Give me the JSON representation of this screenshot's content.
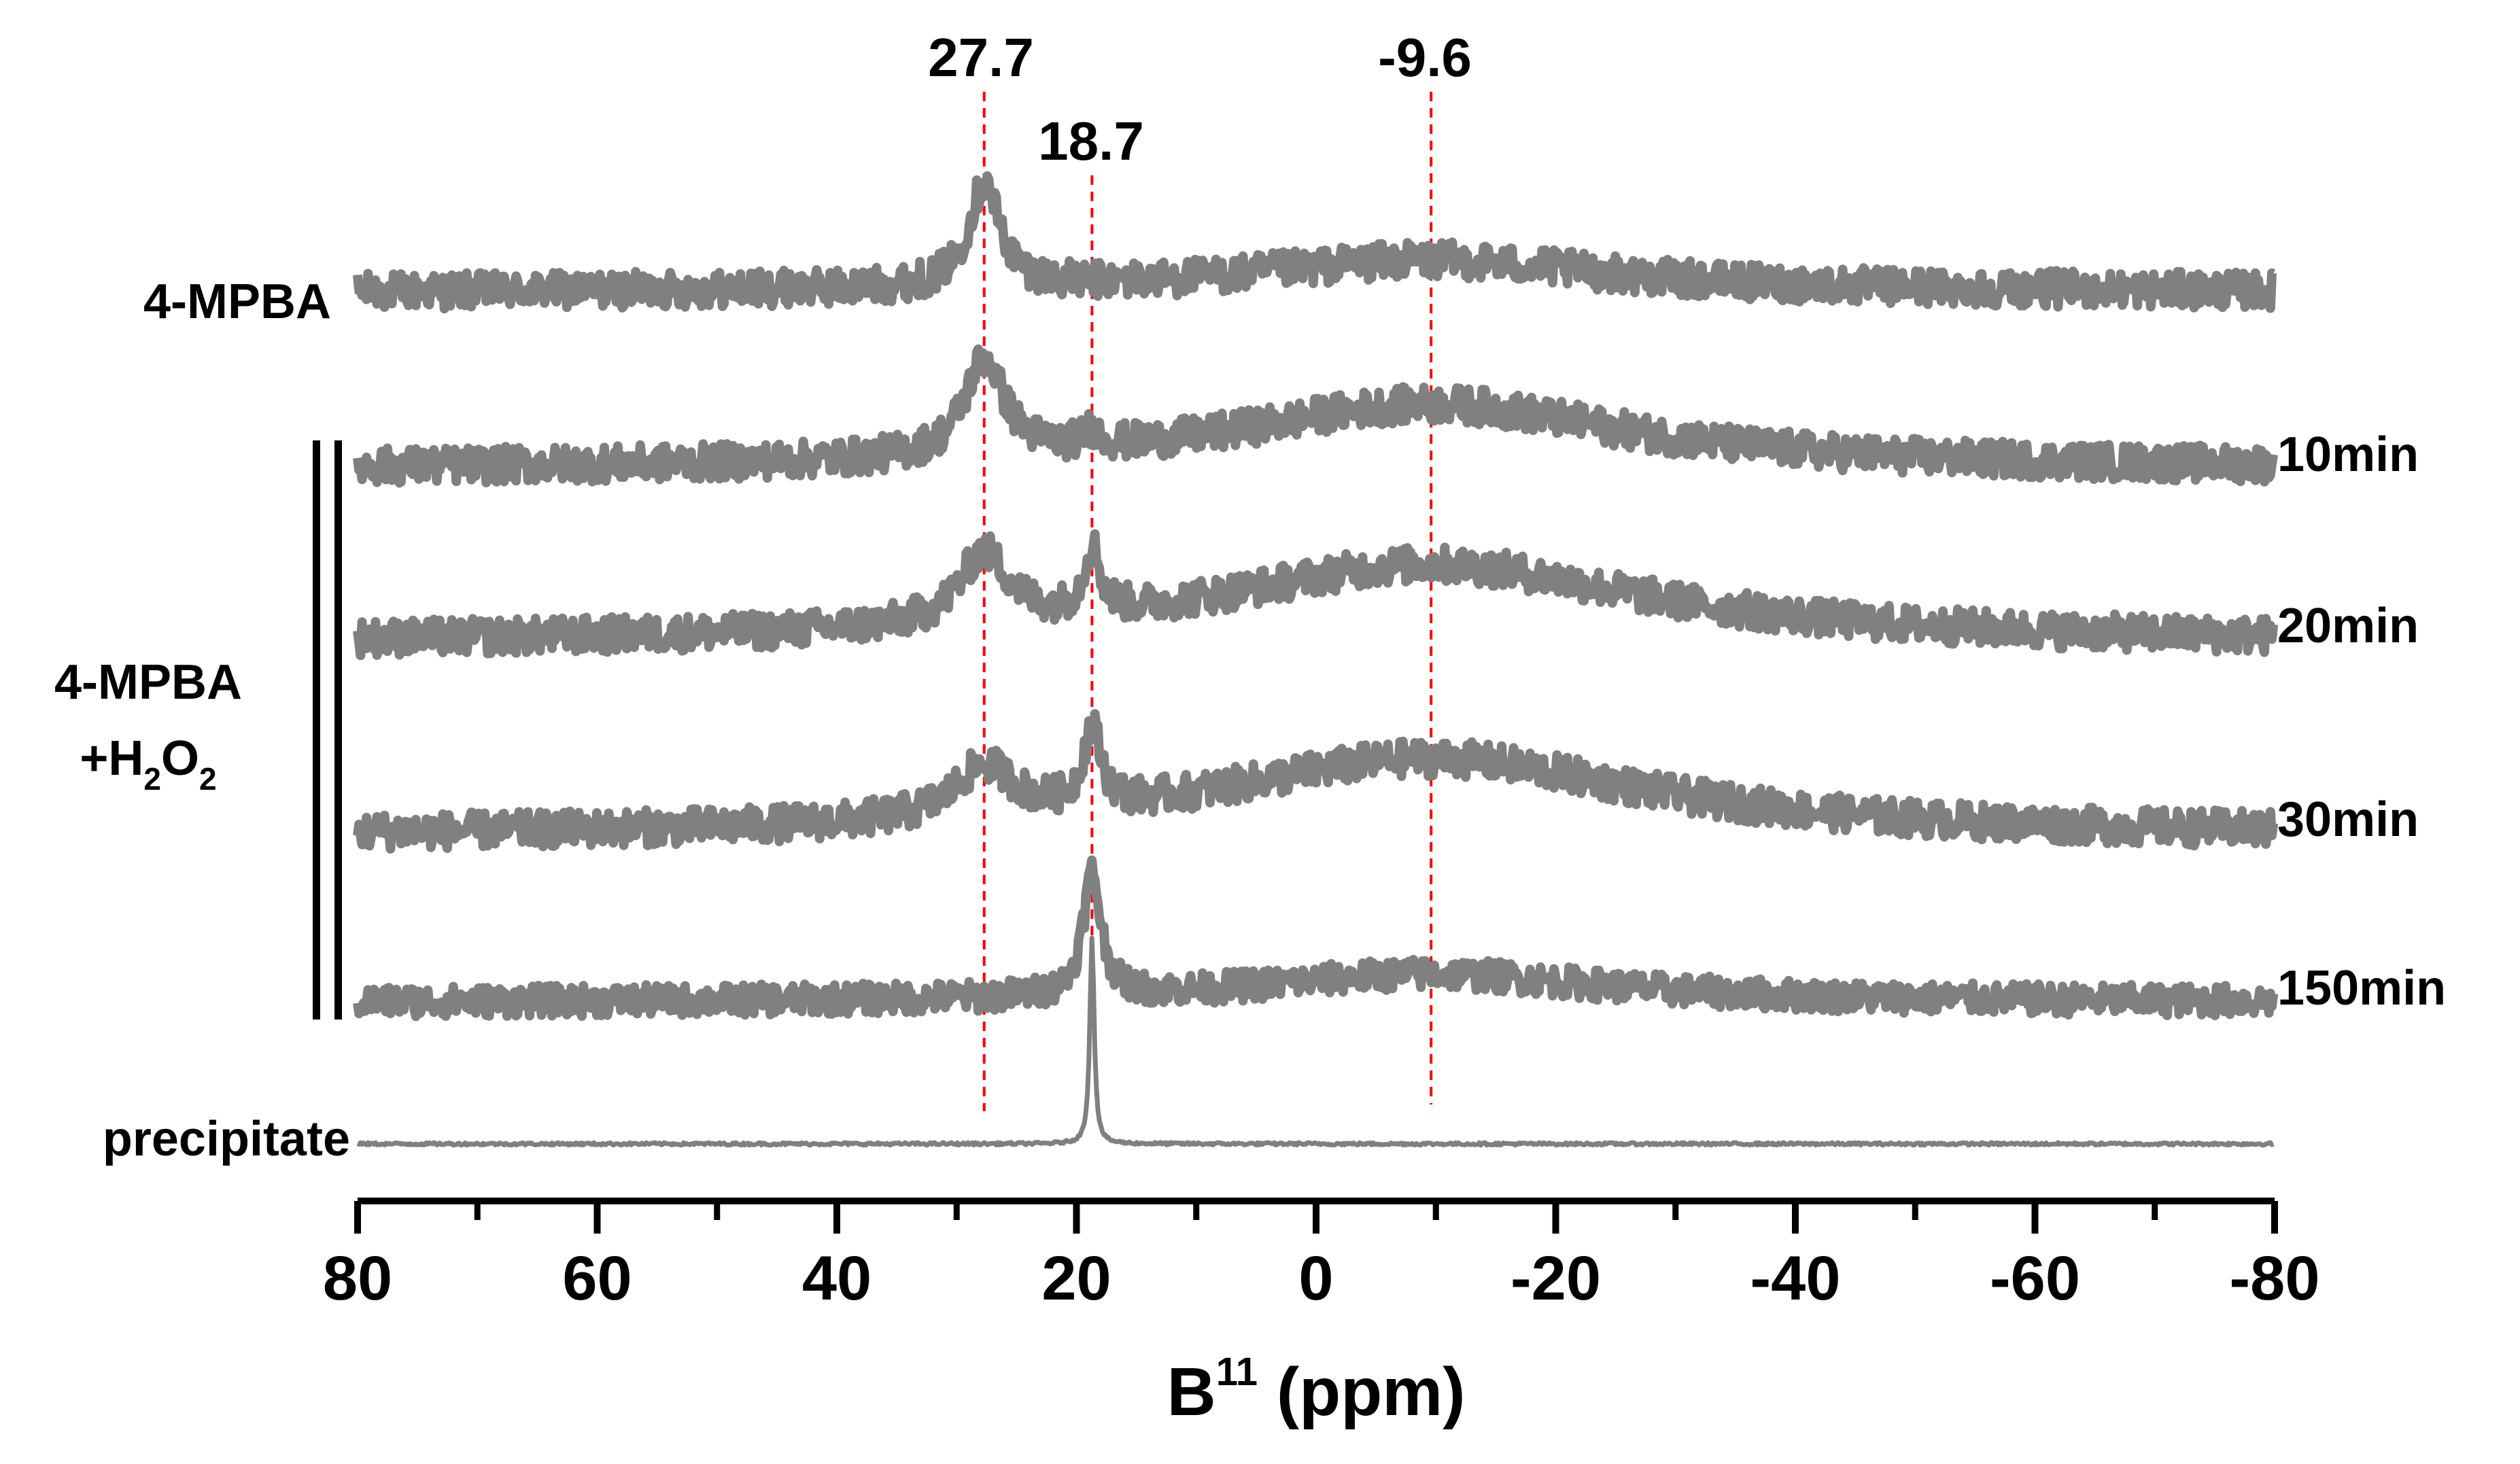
{
  "chart_data": {
    "type": "line",
    "xlabel": {
      "main": "B",
      "sup": "11",
      "unit": " (ppm)"
    },
    "xlim": [
      80,
      -80
    ],
    "x_reversed": true,
    "xticks_major": [
      80,
      60,
      40,
      20,
      0,
      -20,
      -40,
      -60,
      -80
    ],
    "xticks_major_labels": [
      "80",
      "60",
      "40",
      "20",
      "0",
      "-20",
      "-40",
      "-60",
      "-80"
    ],
    "xticks_minor": [
      70,
      50,
      30,
      10,
      -10,
      -30,
      -50,
      -70
    ],
    "grid": false,
    "line_color": "#808080",
    "marker_color": "#ff0000",
    "peak_markers": [
      {
        "ppm": 27.7,
        "label": "27.7"
      },
      {
        "ppm": 18.7,
        "label": "18.7"
      },
      {
        "ppm": -9.6,
        "label": "-9.6"
      }
    ],
    "group_label": {
      "line1": "4-MPBA",
      "line2_prefix": "+H",
      "sub1": "2",
      "mid": "O",
      "sub2": "2"
    },
    "series": [
      {
        "name": "4-MPBA",
        "side": "left",
        "peaks": [
          {
            "ppm": 27.7,
            "height": 0.8,
            "width": 1.6
          },
          {
            "ppm": -9.6,
            "height": 0.25,
            "width": 18
          }
        ],
        "noise": 0.14
      },
      {
        "name": "10min",
        "side": "right",
        "peaks": [
          {
            "ppm": 27.7,
            "height": 0.75,
            "width": 2
          },
          {
            "ppm": 18.7,
            "height": 0.12,
            "width": 0.8
          },
          {
            "ppm": -9.6,
            "height": 0.5,
            "width": 20
          }
        ],
        "noise": 0.14
      },
      {
        "name": "20min",
        "side": "right",
        "peaks": [
          {
            "ppm": 27.7,
            "height": 0.55,
            "width": 2.5
          },
          {
            "ppm": 18.7,
            "height": 0.5,
            "width": 0.8
          },
          {
            "ppm": -9.6,
            "height": 0.6,
            "width": 22
          }
        ],
        "noise": 0.14
      },
      {
        "name": "30min",
        "side": "right",
        "peaks": [
          {
            "ppm": 27.7,
            "height": 0.4,
            "width": 3
          },
          {
            "ppm": 18.7,
            "height": 0.6,
            "width": 0.9
          },
          {
            "ppm": -9.6,
            "height": 0.6,
            "width": 22
          }
        ],
        "noise": 0.14
      },
      {
        "name": "150min",
        "side": "right",
        "peaks": [
          {
            "ppm": 18.7,
            "height": 0.95,
            "width": 0.9
          },
          {
            "ppm": -9.6,
            "height": 0.22,
            "width": 18
          }
        ],
        "noise": 0.12
      },
      {
        "name": "precipitate",
        "side": "left",
        "peaks": [
          {
            "ppm": 18.7,
            "height": 1.6,
            "width": 0.22
          }
        ],
        "noise": 0.01
      }
    ]
  }
}
